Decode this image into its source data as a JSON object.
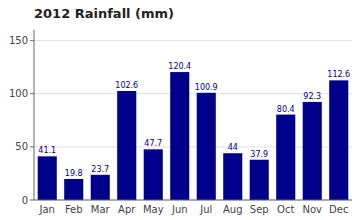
{
  "chart_data": {
    "type": "bar",
    "title": "2012 Rainfall (mm)",
    "categories": [
      "Jan",
      "Feb",
      "Mar",
      "Apr",
      "May",
      "Jun",
      "Jul",
      "Aug",
      "Sep",
      "Oct",
      "Nov",
      "Dec"
    ],
    "values": [
      41.1,
      19.8,
      23.7,
      102.6,
      47.7,
      120.4,
      100.9,
      44.0,
      37.9,
      80.4,
      92.3,
      112.6
    ],
    "color": "#00008B",
    "ylim": [
      0,
      160
    ],
    "yticks": [
      0,
      50,
      100,
      150
    ],
    "grid": true,
    "data_labels": true
  }
}
